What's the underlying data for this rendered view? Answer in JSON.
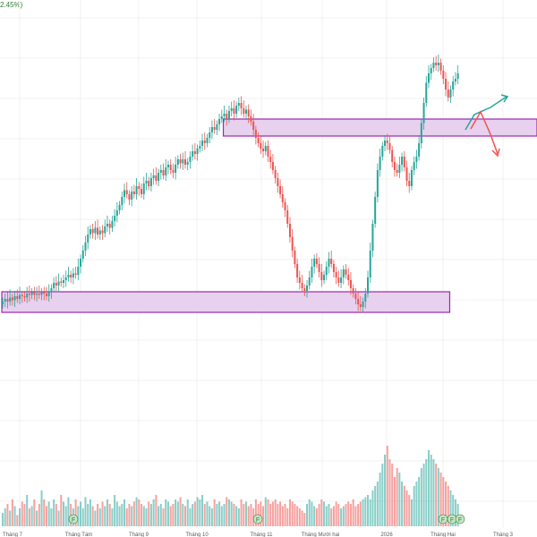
{
  "header": {
    "change_fragment": "2.45%)"
  },
  "chart_data": {
    "type": "candlestick",
    "title": "",
    "xlabel": "",
    "ylabel": "",
    "grid": true,
    "x_tick_labels": [
      "Tháng 7",
      "Tháng Tám",
      "Tháng 9",
      "Tháng 10",
      "Tháng 11",
      "Tháng Mười hai",
      "2026",
      "Tháng Hai",
      "Tháng 3"
    ],
    "event_markers": [
      "F",
      "F",
      "F",
      "F",
      "F"
    ],
    "zones": [
      {
        "name": "resistance",
        "from_index": 91,
        "to_index": 195
      },
      {
        "name": "support",
        "from_index": 0,
        "to_index": 184
      }
    ],
    "projections": [
      "up-arrow",
      "down-arrow"
    ],
    "price_levels": [
      92,
      94,
      92,
      95,
      93,
      96,
      94,
      97,
      96,
      95,
      98,
      97,
      99,
      97,
      98,
      97,
      99,
      98,
      96,
      99,
      102,
      106,
      104,
      107,
      106,
      108,
      110,
      112,
      110,
      113,
      112,
      118,
      124,
      130,
      136,
      142,
      146,
      143,
      147,
      142,
      145,
      143,
      148,
      150,
      147,
      152,
      156,
      160,
      164,
      170,
      175,
      172,
      168,
      174,
      172,
      178,
      176,
      172,
      180,
      182,
      178,
      184,
      186,
      182,
      188,
      190,
      186,
      192,
      194,
      190,
      188,
      194,
      198,
      195,
      198,
      194,
      196,
      200,
      204,
      202,
      206,
      208,
      212,
      210,
      214,
      218,
      222,
      220,
      224,
      228,
      230,
      232,
      228,
      234,
      236,
      232,
      238,
      240,
      236,
      232,
      235,
      230,
      226,
      220,
      214,
      210,
      206,
      204,
      208,
      200,
      196,
      190,
      184,
      178,
      172,
      166,
      160,
      150,
      140,
      130,
      120,
      110,
      106,
      102,
      100,
      104,
      110,
      118,
      124,
      120,
      114,
      108,
      112,
      118,
      124,
      120,
      114,
      110,
      106,
      110,
      116,
      112,
      108,
      102,
      98,
      94,
      90,
      88,
      92,
      98,
      110,
      130,
      150,
      170,
      190,
      200,
      208,
      212,
      210,
      205,
      196,
      190,
      188,
      194,
      200,
      192,
      182,
      178,
      190,
      196,
      200,
      210,
      225,
      240,
      255,
      262,
      266,
      270,
      268,
      270,
      264,
      258,
      250,
      244,
      250,
      256,
      258,
      262
    ],
    "volumes": [
      6,
      8,
      10,
      7,
      12,
      9,
      5,
      8,
      11,
      10,
      14,
      8,
      9,
      12,
      7,
      10,
      16,
      12,
      9,
      11,
      8,
      12,
      10,
      7,
      14,
      11,
      9,
      13,
      10,
      8,
      12,
      9,
      11,
      8,
      13,
      10,
      12,
      9,
      7,
      10,
      8,
      11,
      9,
      12,
      10,
      8,
      14,
      11,
      9,
      10,
      12,
      8,
      10,
      9,
      11,
      13,
      12,
      10,
      9,
      8,
      11,
      10,
      12,
      14,
      9,
      10,
      8,
      12,
      11,
      9,
      10,
      12,
      11,
      13,
      10,
      9,
      12,
      8,
      10,
      11,
      13,
      12,
      14,
      10,
      11,
      9,
      8,
      12,
      10,
      11,
      9,
      10,
      13,
      12,
      11,
      10,
      9,
      8,
      12,
      10,
      11,
      9,
      10,
      8,
      12,
      10,
      11,
      9,
      13,
      12,
      10,
      11,
      12,
      10,
      11,
      9,
      10,
      8,
      12,
      11,
      10,
      9,
      8,
      7,
      6,
      10,
      12,
      11,
      9,
      8,
      10,
      12,
      11,
      9,
      10,
      8,
      9,
      11,
      10,
      8,
      9,
      10,
      11,
      10,
      12,
      9,
      10,
      11,
      12,
      13,
      14,
      12,
      16,
      18,
      20,
      24,
      28,
      32,
      36,
      30,
      28,
      22,
      26,
      24,
      20,
      18,
      16,
      14,
      12,
      18,
      20,
      22,
      26,
      28,
      30,
      34,
      32,
      30,
      28,
      26,
      24,
      22,
      20,
      18,
      16,
      14,
      12,
      10
    ]
  },
  "colors": {
    "up": "#26a69a",
    "down": "#ef5350",
    "zone_fill": "#e8d1ef",
    "zone_border": "#9c27b0",
    "grid": "#f1f1f1",
    "axis_text": "#5a5a5a",
    "up_arrow": "#26a69a",
    "down_arrow": "#ef5350",
    "marker_fill": "#c8e6c9",
    "marker_text": "#2e7d32"
  }
}
